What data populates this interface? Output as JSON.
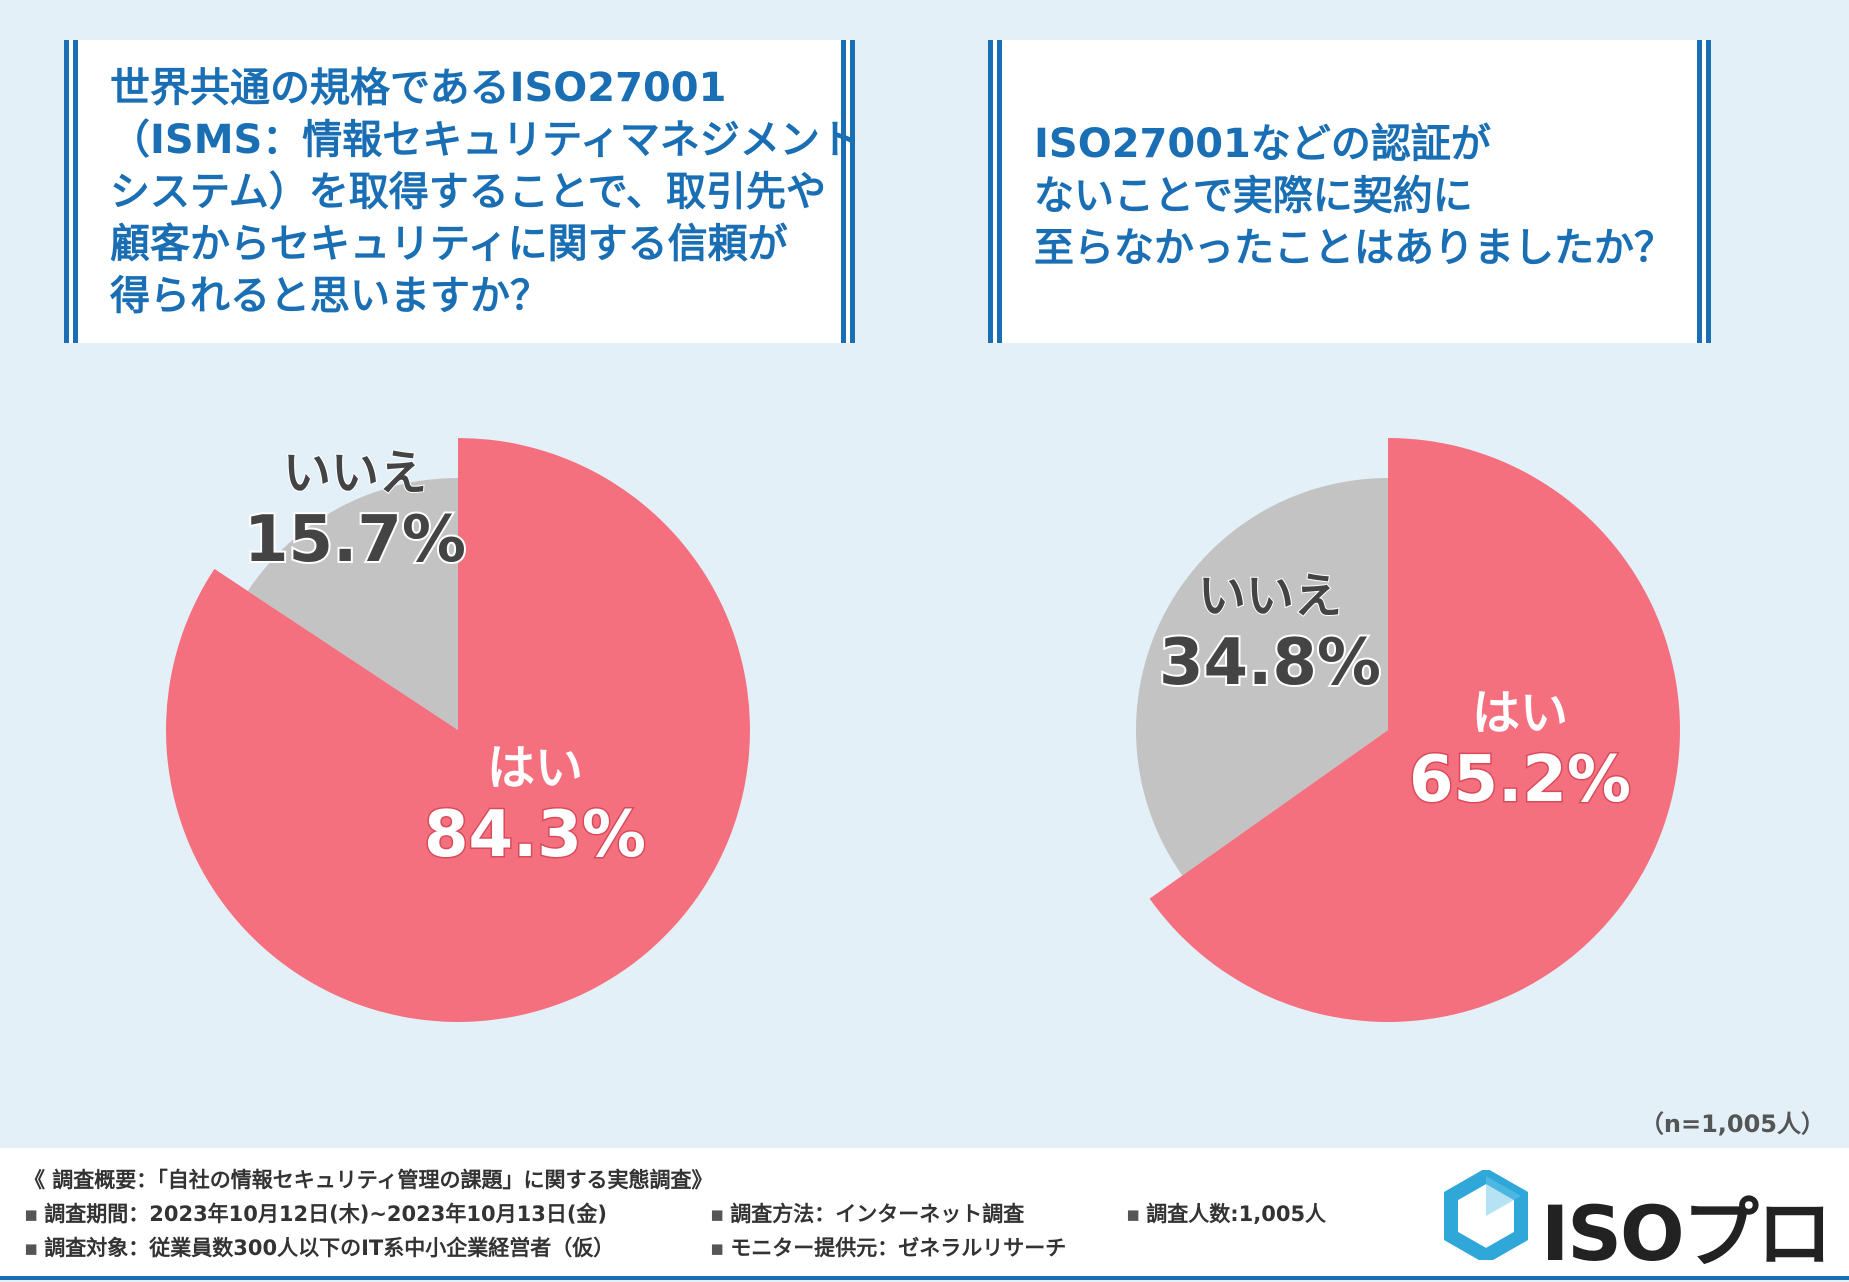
{
  "colors": {
    "yes": "#f5707e",
    "no": "#c3c3c3",
    "title": "#1a6fb4",
    "background": "#e3f0f8"
  },
  "question1": {
    "lines": [
      "世界共通の規格であるISO27001",
      "（ISMS：情報セキュリティマネジメント",
      "システム）を取得することで、取引先や",
      "顧客からセキュリティに関する信頼が",
      "得られると思いますか？"
    ]
  },
  "question2": {
    "lines": [
      "ISO27001などの認証が",
      "ないことで実際に契約に",
      "至らなかったことはありましたか？"
    ]
  },
  "chart_data": [
    {
      "type": "pie",
      "title": "世界共通の規格であるISO27001（ISMS：情報セキュリティマネジメントシステム）を取得することで、取引先や顧客からセキュリティに関する信頼が得られると思いますか？",
      "slices": [
        {
          "label": "はい",
          "value": 84.3,
          "value_text": "84.3%"
        },
        {
          "label": "いいえ",
          "value": 15.7,
          "value_text": "15.7%"
        }
      ]
    },
    {
      "type": "pie",
      "title": "ISO27001などの認証がないことで実際に契約に至らなかったことはありましたか？",
      "slices": [
        {
          "label": "はい",
          "value": 65.2,
          "value_text": "65.2%"
        },
        {
          "label": "いいえ",
          "value": 34.8,
          "value_text": "34.8%"
        }
      ]
    }
  ],
  "sample_size": "（n=1,005人）",
  "footer": {
    "title": "《 調査概要：「自社の情報セキュリティ管理の課題」に関する実態調査》",
    "bullet": "▪",
    "period": "調査期間：2023年10月12日(木)~2023年10月13日(金)",
    "method": "調査方法：インターネット調査",
    "count": "調査人数:1,005人",
    "target": "調査対象：従業員数300人以下のIT系中小企業経営者（仮）",
    "monitor": "モニター提供元：ゼネラルリサーチ"
  },
  "logo": {
    "text": "ISOプロ"
  }
}
